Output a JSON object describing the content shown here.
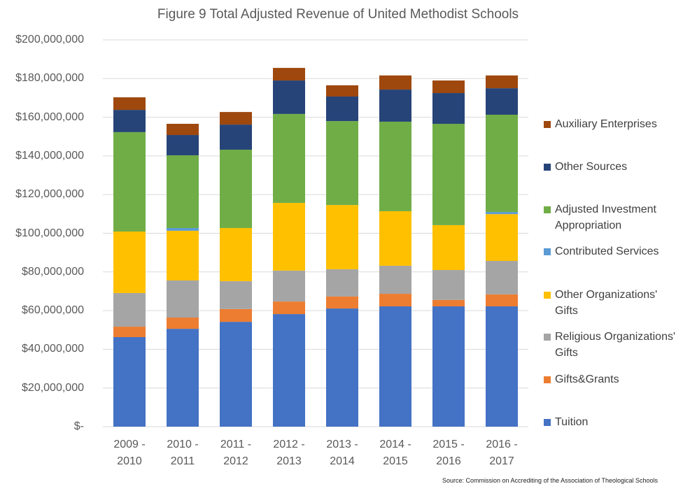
{
  "chart_data": {
    "type": "bar",
    "stacked": true,
    "title": "Figure 9  Total Adjusted Revenue of United Methodist Schools",
    "source": "Source: Commission on Accrediting of the Association of Theological Schools",
    "categories": [
      "2009 - 2010",
      "2010 - 2011",
      "2011 - 2012",
      "2012 - 2013",
      "2013 - 2014",
      "2014 - 2015",
      "2015 - 2016",
      "2016 - 2017"
    ],
    "series": [
      {
        "name": "Tuition",
        "color": "#4472c4",
        "values": [
          46300000,
          50600000,
          54200000,
          58200000,
          61100000,
          62200000,
          62200000,
          62200000
        ]
      },
      {
        "name": "Gifts&Grants",
        "color": "#ed7d31",
        "values": [
          5400000,
          5800000,
          6600000,
          6500000,
          6200000,
          6500000,
          3300000,
          6200000
        ]
      },
      {
        "name": "Religious Organizations' Gifts",
        "color": "#a5a5a5",
        "values": [
          17400000,
          19200000,
          14400000,
          16000000,
          14100000,
          14500000,
          15500000,
          17300000
        ]
      },
      {
        "name": "Other Organizations' Gifts",
        "color": "#ffc000",
        "values": [
          31800000,
          25700000,
          27500000,
          35000000,
          33200000,
          28200000,
          23200000,
          24200000
        ]
      },
      {
        "name": "Contributed Services",
        "color": "#5b9bd5",
        "values": [
          0,
          1400000,
          0,
          0,
          0,
          0,
          0,
          1100000
        ]
      },
      {
        "name": "Adjusted Investment Appropriation",
        "color": "#70ad47",
        "values": [
          51400000,
          37600000,
          40500000,
          46000000,
          43400000,
          46300000,
          52400000,
          50300000
        ]
      },
      {
        "name": "Other Sources",
        "color": "#264478",
        "values": [
          11500000,
          10500000,
          13000000,
          17300000,
          12700000,
          16600000,
          15900000,
          13700000
        ]
      },
      {
        "name": "Auxiliary Enterprises",
        "color": "#9e480e",
        "values": [
          6500000,
          5800000,
          6500000,
          6500000,
          5800000,
          7300000,
          6500000,
          6600000
        ]
      }
    ],
    "ylim": [
      0,
      200000000
    ],
    "yticks": [
      {
        "value": 0,
        "label": "$-"
      },
      {
        "value": 20000000,
        "label": "$20,000,000"
      },
      {
        "value": 40000000,
        "label": "$40,000,000"
      },
      {
        "value": 60000000,
        "label": "$60,000,000"
      },
      {
        "value": 80000000,
        "label": "$80,000,000"
      },
      {
        "value": 100000000,
        "label": "$100,000,000"
      },
      {
        "value": 120000000,
        "label": "$120,000,000"
      },
      {
        "value": 140000000,
        "label": "$140,000,000"
      },
      {
        "value": 160000000,
        "label": "$160,000,000"
      },
      {
        "value": 180000000,
        "label": "$180,000,000"
      },
      {
        "value": 200000000,
        "label": "$200,000,000"
      }
    ],
    "grid": true,
    "legend": "right"
  }
}
